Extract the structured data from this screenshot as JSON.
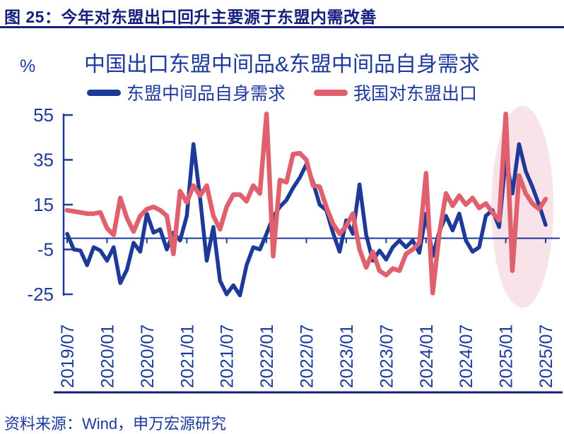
{
  "figure": {
    "title": "图 25：今年对东盟出口回升主要源于东盟内需改善"
  },
  "chart": {
    "unit_label": "%",
    "title": "中国出口东盟中间品&东盟中间品自身需求",
    "legend": [
      {
        "label": "东盟中间品自身需求"
      },
      {
        "label": "我国对东盟出口"
      }
    ]
  },
  "footer": {
    "source": "资料来源：Wind，申万宏源研究"
  },
  "colors": {
    "header_navy": "#141f7c",
    "label_blue": "#1d3a9e",
    "series_blue": "#1e3a99",
    "series_red": "#e0606e",
    "highlight_pink": "#f8e3e8",
    "background": "#ffffff"
  },
  "chart_data": {
    "type": "line",
    "title": "中国出口东盟中间品&东盟中间品自身需求",
    "xlabel": "",
    "ylabel": "%",
    "grid": false,
    "legend_position": "top",
    "y_ticks": [
      55,
      35,
      15,
      -5,
      -25
    ],
    "ylim": [
      -27,
      57
    ],
    "x_tick_labels": [
      "2019/07",
      "2020/01",
      "2020/07",
      "2021/01",
      "2021/07",
      "2022/01",
      "2022/07",
      "2023/01",
      "2023/07",
      "2024/01",
      "2024/07",
      "2025/01",
      "2025/07"
    ],
    "x_tick_every": 6,
    "x": [
      "2019/07",
      "2019/08",
      "2019/09",
      "2019/10",
      "2019/11",
      "2019/12",
      "2020/01",
      "2020/02",
      "2020/03",
      "2020/04",
      "2020/05",
      "2020/06",
      "2020/07",
      "2020/08",
      "2020/09",
      "2020/10",
      "2020/11",
      "2020/12",
      "2021/01",
      "2021/02",
      "2021/03",
      "2021/04",
      "2021/05",
      "2021/06",
      "2021/07",
      "2021/08",
      "2021/09",
      "2021/10",
      "2021/11",
      "2021/12",
      "2022/01",
      "2022/02",
      "2022/03",
      "2022/04",
      "2022/05",
      "2022/06",
      "2022/07",
      "2022/08",
      "2022/09",
      "2022/10",
      "2022/11",
      "2022/12",
      "2023/01",
      "2023/02",
      "2023/03",
      "2023/04",
      "2023/05",
      "2023/06",
      "2023/07",
      "2023/08",
      "2023/09",
      "2023/10",
      "2023/11",
      "2023/12",
      "2024/01",
      "2024/02",
      "2024/03",
      "2024/04",
      "2024/05",
      "2024/06",
      "2024/07",
      "2024/08",
      "2024/09",
      "2024/10",
      "2024/11",
      "2024/12",
      "2025/01",
      "2025/02",
      "2025/03",
      "2025/04",
      "2025/05",
      "2025/06",
      "2025/07"
    ],
    "series": [
      {
        "name": "东盟中间品自身需求",
        "color": "#1e3a99",
        "values": [
          2,
          -5,
          -5.5,
          -12,
          -4,
          -5.5,
          -10,
          -4,
          -20,
          -14,
          -2,
          -6,
          11,
          2.5,
          4,
          -5,
          2.5,
          -1,
          10,
          42,
          18,
          -10,
          5,
          -19,
          -25,
          -21,
          -25.5,
          -12,
          -4,
          -5,
          2,
          9.5,
          14,
          17,
          22.5,
          27,
          33,
          25,
          15,
          12.5,
          2.5,
          -6,
          8,
          2,
          24,
          1.5,
          -10,
          -5.5,
          -9.5,
          -4,
          -1,
          -4,
          -1,
          -6.5,
          11,
          -8,
          3,
          10,
          3.5,
          11,
          -1,
          -6,
          -4,
          10,
          12.5,
          5,
          36,
          20,
          42,
          30,
          23,
          15,
          6
        ]
      },
      {
        "name": "我国对东盟出口",
        "color": "#e0606e",
        "values": [
          12.5,
          12,
          11.5,
          11,
          11,
          11.5,
          4.5,
          1.5,
          18,
          9,
          3,
          10,
          13,
          14,
          12.5,
          10,
          -7,
          21,
          16,
          23.5,
          19,
          23.5,
          10,
          4,
          14,
          19.5,
          19.5,
          16.5,
          23.5,
          20,
          55.5,
          -8,
          26,
          25,
          37.5,
          38,
          35,
          23.5,
          23,
          14,
          6.5,
          2,
          5.5,
          11,
          -5,
          -13,
          -6,
          -14.5,
          -16.5,
          -13.5,
          -14.5,
          -7,
          -5,
          -2,
          29,
          -24.5,
          2,
          20,
          14.5,
          19,
          15,
          18,
          13.5,
          15.5,
          11.5,
          8,
          55.5,
          -14.5,
          28,
          20,
          15.5,
          13,
          17.5
        ]
      }
    ],
    "highlight": {
      "type": "ellipse",
      "x_range": [
        "2024/12",
        "2025/07"
      ],
      "color": "#f8e3e8"
    }
  }
}
